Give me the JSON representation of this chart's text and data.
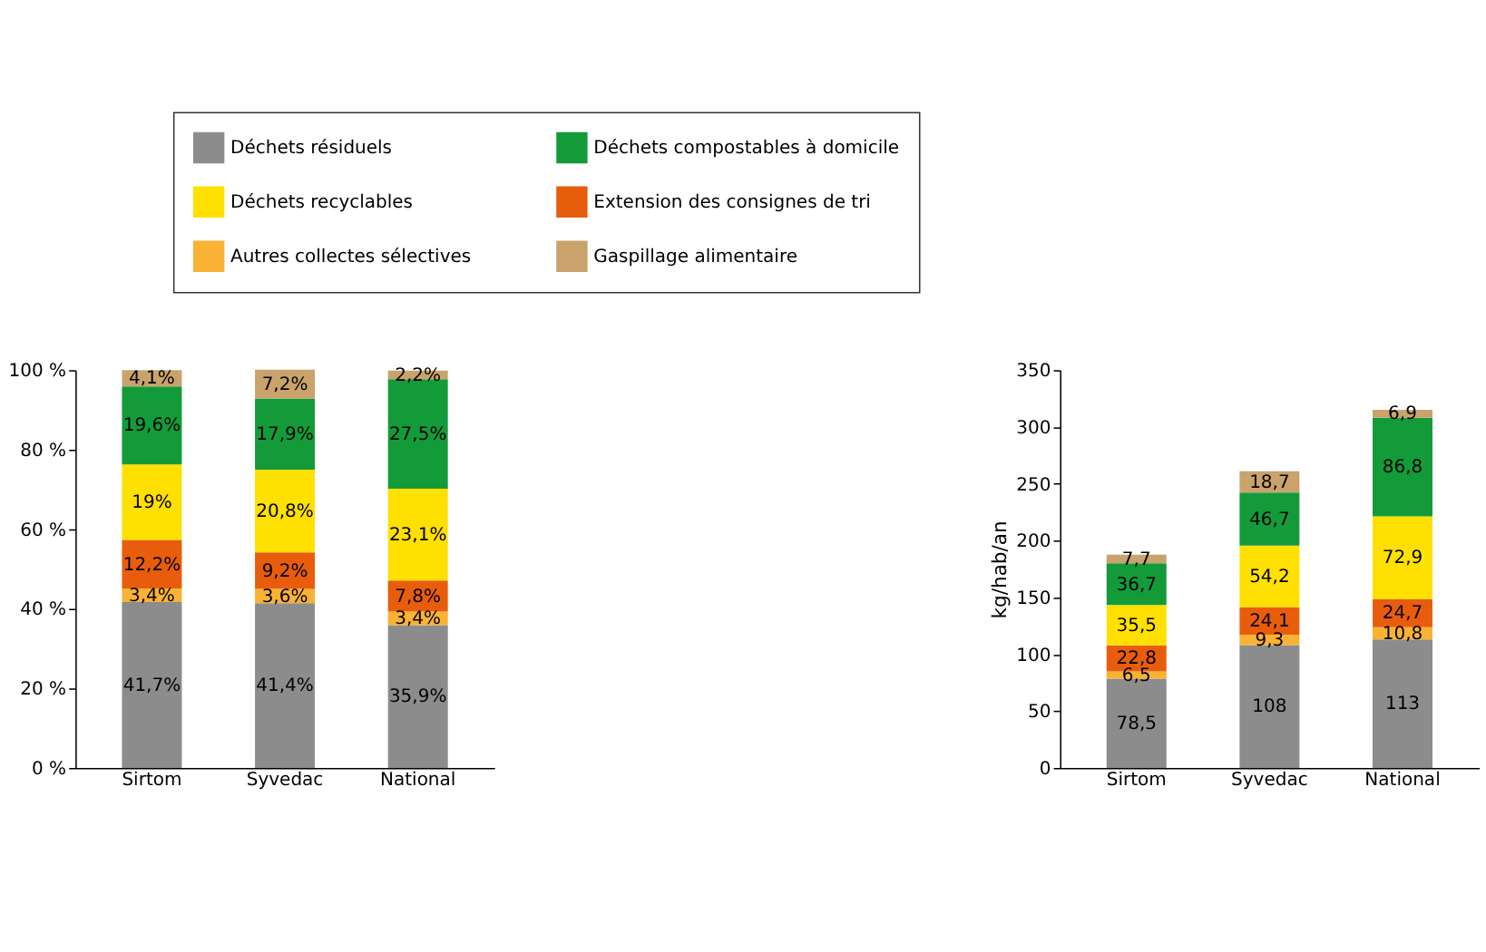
{
  "chart_data": [
    {
      "type": "bar",
      "stacked": true,
      "categories": [
        "Sirtom",
        "Syvedac",
        "National"
      ],
      "ylim": [
        0,
        100
      ],
      "yticks": [
        {
          "value": 0,
          "label": "0 %"
        },
        {
          "value": 20,
          "label": "20 %"
        },
        {
          "value": 40,
          "label": "40 %"
        },
        {
          "value": 60,
          "label": "60 %"
        },
        {
          "value": 80,
          "label": "80 %"
        },
        {
          "value": 100,
          "label": "100 %"
        }
      ],
      "grid": false,
      "legend": "top",
      "series": [
        {
          "name": "Déchets résiduels",
          "color": "#8c8c8c",
          "values": [
            41.7,
            41.4,
            35.9
          ],
          "value_labels": [
            "41,7%",
            "41,4%",
            "35,9%"
          ]
        },
        {
          "name": "Autres collectes sélectives",
          "color": "#f9b233",
          "values": [
            3.4,
            3.6,
            3.4
          ],
          "value_labels": [
            "3,4%",
            "3,6%",
            "3,4%"
          ]
        },
        {
          "name": "Extension des consignes de tri",
          "color": "#e85d0c",
          "values": [
            12.2,
            9.2,
            7.8
          ],
          "value_labels": [
            "12,2%",
            "9,2%",
            "7,8%"
          ]
        },
        {
          "name": "Déchets recyclables",
          "color": "#ffe000",
          "values": [
            19,
            20.8,
            23.1
          ],
          "value_labels": [
            "19%",
            "20,8%",
            "23,1%"
          ]
        },
        {
          "name": "Déchets compostables à domicile",
          "color": "#139b3a",
          "values": [
            19.6,
            17.9,
            27.5
          ],
          "value_labels": [
            "19,6%",
            "17,9%",
            "27,5%"
          ]
        },
        {
          "name": "Gaspillage alimentaire",
          "color": "#c9a36b",
          "values": [
            4.1,
            7.2,
            2.2
          ],
          "value_labels": [
            "4,1%",
            "7,2%",
            "2,2%"
          ]
        }
      ]
    },
    {
      "type": "bar",
      "stacked": true,
      "categories": [
        "Sirtom",
        "Syvedac",
        "National"
      ],
      "ylabel": "kg/hab/an",
      "ylim": [
        0,
        350
      ],
      "yticks": [
        0,
        50,
        100,
        150,
        200,
        250,
        300,
        350
      ],
      "grid": false,
      "legend": false,
      "series": [
        {
          "color": "#8c8c8c",
          "values": [
            78.5,
            108,
            113
          ],
          "value_labels": [
            "78,5",
            "108",
            "113"
          ]
        },
        {
          "color": "#f9b233",
          "values": [
            6.5,
            9.3,
            10.8
          ],
          "value_labels": [
            "6,5",
            "9,3",
            "10,8"
          ]
        },
        {
          "color": "#e85d0c",
          "values": [
            22.8,
            24.1,
            24.7
          ],
          "value_labels": [
            "22,8",
            "24,1",
            "24,7"
          ]
        },
        {
          "color": "#ffe000",
          "values": [
            35.5,
            54.2,
            72.9
          ],
          "value_labels": [
            "35,5",
            "54,2",
            "72,9"
          ]
        },
        {
          "color": "#139b3a",
          "values": [
            36.7,
            46.7,
            86.8
          ],
          "value_labels": [
            "36,7",
            "46,7",
            "86,8"
          ]
        },
        {
          "color": "#c9a36b",
          "values": [
            7.7,
            18.7,
            6.9
          ],
          "value_labels": [
            "7,7",
            "18,7",
            "6,9"
          ]
        }
      ]
    }
  ]
}
